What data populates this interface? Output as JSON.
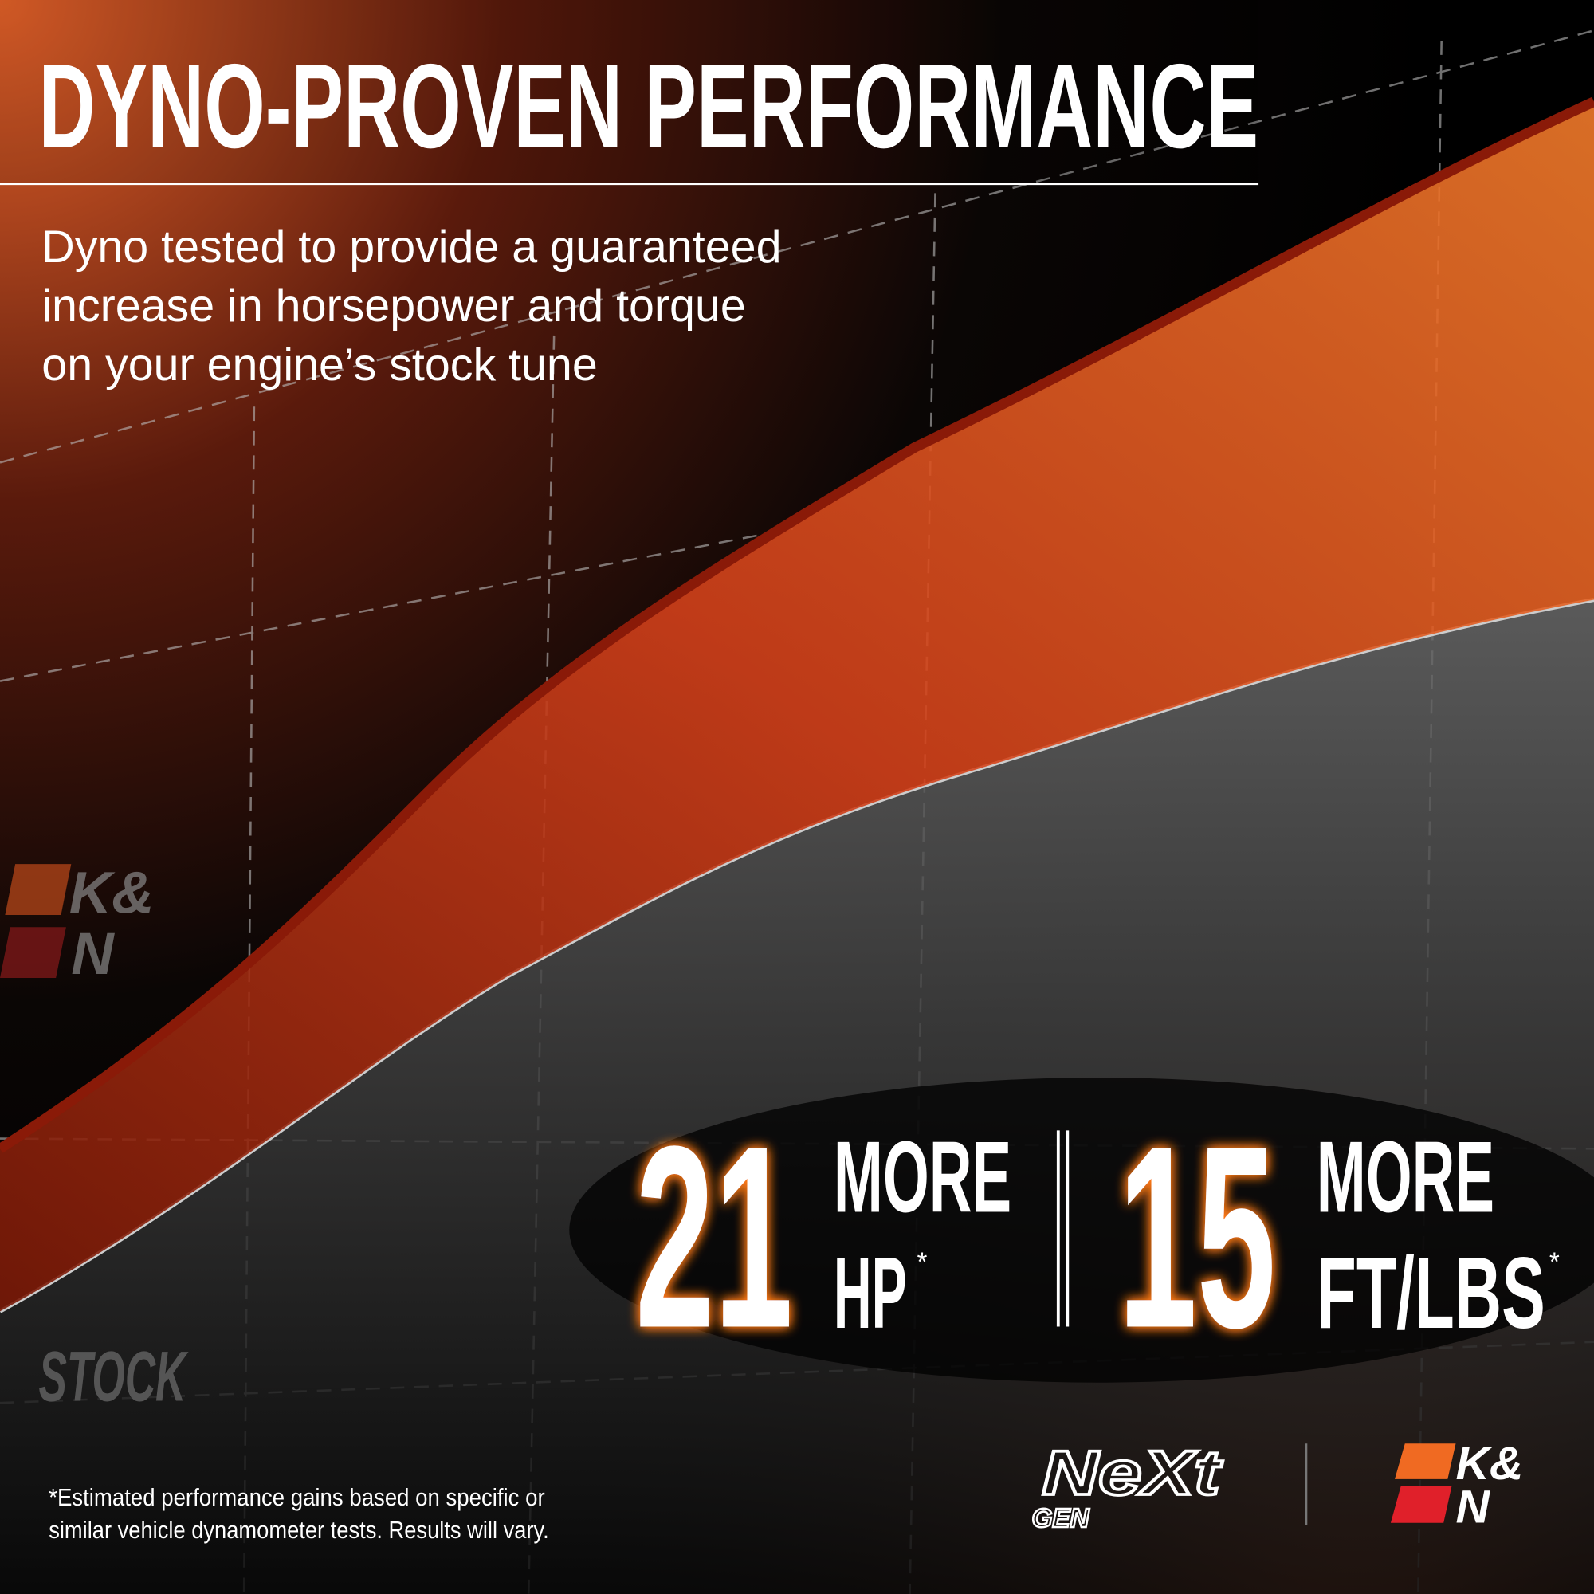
{
  "header": {
    "title": "DYNO-PROVEN PERFORMANCE",
    "subtitle": [
      "Dyno tested to provide a guaranteed",
      "increase in horsepower and torque",
      "on your engine’s stock tune"
    ]
  },
  "stats": [
    {
      "value": "21",
      "top": "MORE",
      "bottom": "HP",
      "mark": "*"
    },
    {
      "value": "15",
      "top": "MORE",
      "bottom": "FT/LBS",
      "mark": "*"
    }
  ],
  "chart_labels": {
    "stock": "STOCK",
    "tuned_logo": [
      "K&",
      "N"
    ]
  },
  "footnote": [
    "*Estimated performance gains based on specific or",
    "similar vehicle dynamometer tests. Results will vary."
  ],
  "logos": {
    "nextgen": [
      "NeXt",
      "GEN"
    ],
    "kn": [
      "K&",
      "N"
    ]
  }
}
